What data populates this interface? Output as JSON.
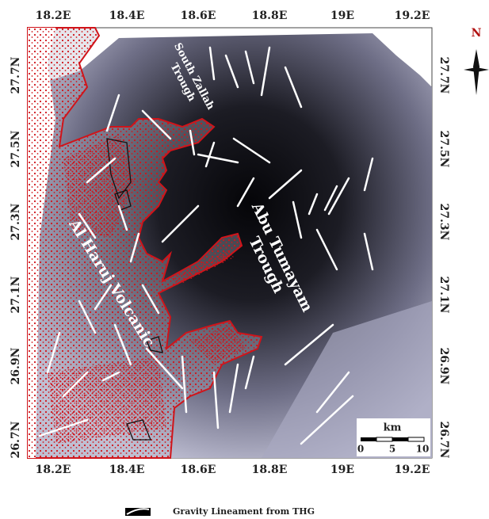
{
  "map": {
    "longitude_labels": [
      "18.2E",
      "18.4E",
      "18.6E",
      "18.8E",
      "19E",
      "19.2E"
    ],
    "latitude_labels": [
      "27.7N",
      "27.5N",
      "27.3N",
      "27.1N",
      "26.9N",
      "26.7N"
    ],
    "north_label": "N",
    "features": {
      "south_zallah": [
        "South Zallah",
        "Trough"
      ],
      "al_haruj": "Al Haruj Volcanic",
      "abu_tumayam": [
        "Abu Tumayam",
        "Trough"
      ]
    },
    "scale_bar": {
      "unit": "km",
      "labels": [
        0,
        5,
        10
      ]
    },
    "legend": "Gravity Lineament from THG"
  }
}
